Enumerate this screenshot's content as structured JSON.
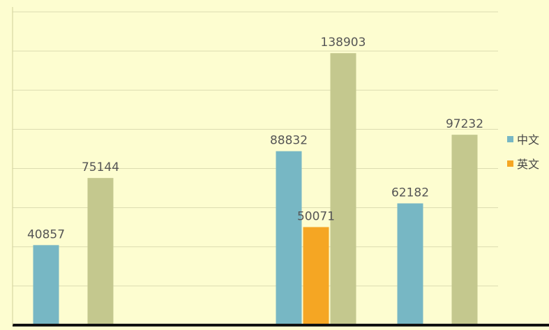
{
  "chart_data": {
    "type": "bar",
    "categories": [
      "",
      "",
      "",
      ""
    ],
    "series": [
      {
        "name": "中文",
        "color": "#77b7c4",
        "values": [
          40857,
          null,
          88832,
          62182
        ]
      },
      {
        "name": "英文",
        "color": "#f5a623",
        "values": [
          null,
          null,
          50071,
          null
        ]
      },
      {
        "name": "",
        "color": "#c4c88e",
        "values": [
          75144,
          null,
          138903,
          97232
        ]
      }
    ],
    "value_labels": [
      [
        "40857",
        "",
        "88832",
        "62182"
      ],
      [
        "",
        "",
        "50071",
        ""
      ],
      [
        "75144",
        "",
        "138903",
        "97232"
      ]
    ],
    "ylim": [
      0,
      160000
    ],
    "grid": true,
    "legend_position": "right"
  }
}
